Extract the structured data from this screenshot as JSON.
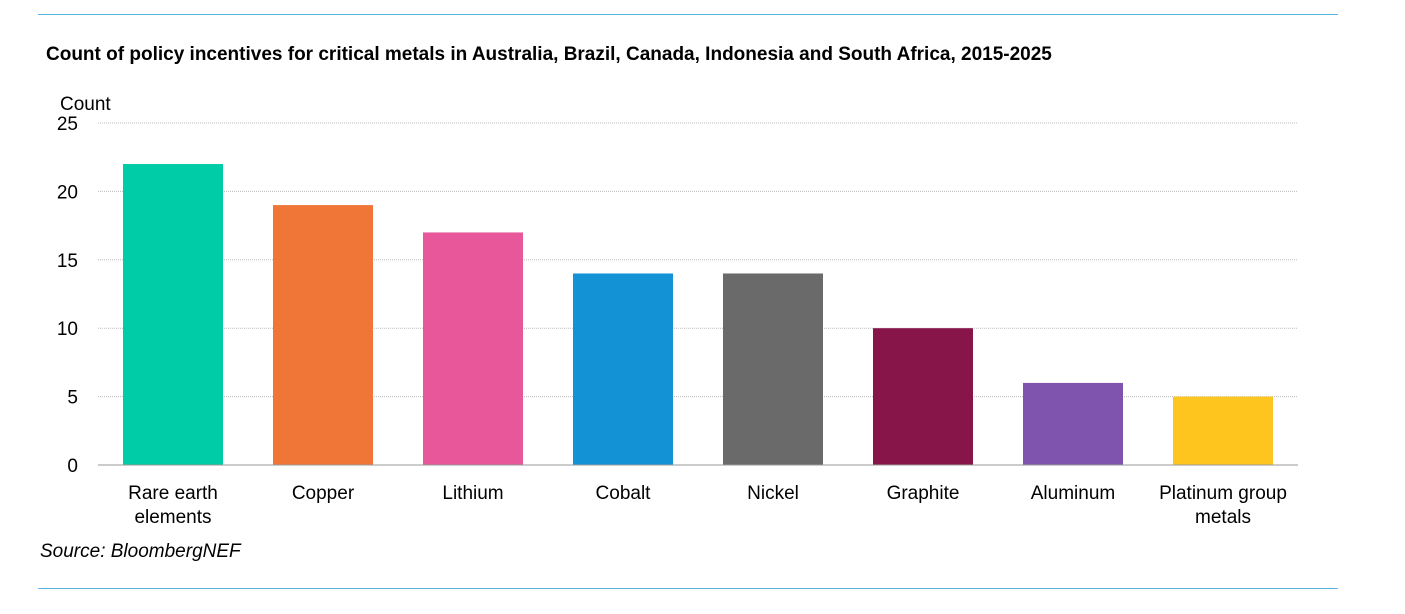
{
  "header": {
    "title": "Count of policy incentives for critical metals in Australia, Brazil, Canada, Indonesia and South Africa, 2015-2025"
  },
  "footer": {
    "source": "Source: BloombergNEF"
  },
  "chart_data": {
    "type": "bar",
    "title": "Count of policy incentives for critical metals in Australia, Brazil, Canada, Indonesia and South Africa, 2015-2025",
    "xlabel": "",
    "ylabel": "Count",
    "ylim": [
      0,
      25
    ],
    "yticks": [
      0,
      5,
      10,
      15,
      20,
      25
    ],
    "grid": true,
    "legend": "none",
    "categories": [
      [
        "Rare earth",
        "elements"
      ],
      [
        "Copper"
      ],
      [
        "Lithium"
      ],
      [
        "Cobalt"
      ],
      [
        "Nickel"
      ],
      [
        "Graphite"
      ],
      [
        "Aluminum"
      ],
      [
        "Platinum group",
        "metals"
      ]
    ],
    "values": [
      22,
      19,
      17,
      14,
      14,
      10,
      6,
      5
    ],
    "colors": [
      "#00cca8",
      "#f07637",
      "#e8579a",
      "#1392d6",
      "#6a6a6a",
      "#871549",
      "#7f54ae",
      "#fdc51e"
    ]
  }
}
